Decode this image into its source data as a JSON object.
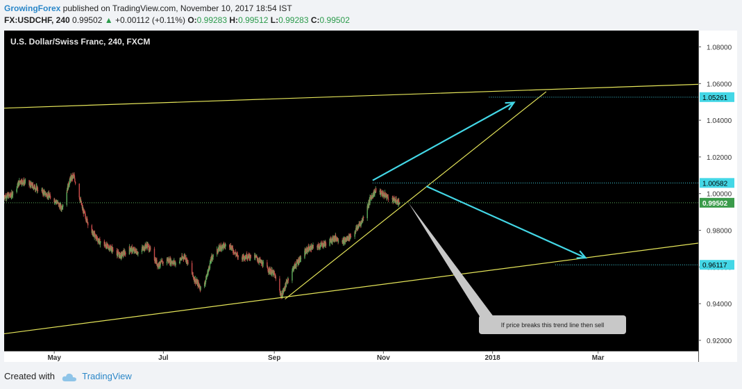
{
  "header": {
    "author": "GrowingForex",
    "published_text": " published on TradingView.com, November 10, 2017 18:54 IST",
    "symbol": "FX:USDCHF, 240",
    "last": "0.99502",
    "change_arrow": "▲",
    "change": "+0.00112 (+0.11%)",
    "o_label": "O:",
    "o_value": "0.99283",
    "h_label": "H:",
    "h_value": "0.99512",
    "l_label": "L:",
    "l_value": "0.99283",
    "c_label": "C:",
    "c_value": "0.99502"
  },
  "footer": {
    "created_with": "Created with",
    "brand": "TradingView"
  },
  "colors": {
    "background": "#000000",
    "up_candle": "#5cae5c",
    "down_candle": "#cd4b4b",
    "trend_line": "#e6e65a",
    "arrow": "#43d7e6",
    "hline": "#43d7e6",
    "price_line": "#5cae5c",
    "callout": "#c8c8c8"
  },
  "chart_data": {
    "type": "candlestick",
    "title": "U.S. Dollar/Swiss Franc, 240, FXCM",
    "x_axis": {
      "ticks": [
        "May",
        "Jul",
        "Sep",
        "Nov",
        "2018",
        "Mar"
      ],
      "tick_dates": [
        "2017-05-01",
        "2017-07-01",
        "2017-09-01",
        "2017-11-01",
        "2018-01-01",
        "2018-03-01"
      ],
      "range": [
        "2017-04-03",
        "2018-04-26"
      ]
    },
    "y_axis": {
      "ticks": [
        "1.08000",
        "1.06000",
        "1.04000",
        "1.02000",
        "1.00000",
        "0.98000",
        "0.96000",
        "0.94000",
        "0.92000"
      ],
      "range": [
        0.9143,
        1.0889
      ]
    },
    "price_path": [
      [
        "2017-04-03",
        0.9985
      ],
      [
        "2017-04-07",
        0.999
      ],
      [
        "2017-04-12",
        1.007
      ],
      [
        "2017-04-17",
        1.005
      ],
      [
        "2017-04-21",
        1.003
      ],
      [
        "2017-04-26",
        1.0
      ],
      [
        "2017-05-02",
        0.996
      ],
      [
        "2017-05-05",
        0.992
      ],
      [
        "2017-05-10",
        1.008
      ],
      [
        "2017-05-12",
        1.0095
      ],
      [
        "2017-05-17",
        0.991
      ],
      [
        "2017-05-22",
        0.979
      ],
      [
        "2017-05-27",
        0.973
      ],
      [
        "2017-06-02",
        0.97
      ],
      [
        "2017-06-07",
        0.966
      ],
      [
        "2017-06-12",
        0.97
      ],
      [
        "2017-06-17",
        0.968
      ],
      [
        "2017-06-22",
        0.972
      ],
      [
        "2017-06-28",
        0.961
      ],
      [
        "2017-07-03",
        0.964
      ],
      [
        "2017-07-08",
        0.962
      ],
      [
        "2017-07-13",
        0.966
      ],
      [
        "2017-07-18",
        0.954
      ],
      [
        "2017-07-23",
        0.947
      ],
      [
        "2017-07-28",
        0.965
      ],
      [
        "2017-08-02",
        0.971
      ],
      [
        "2017-08-07",
        0.972
      ],
      [
        "2017-08-12",
        0.965
      ],
      [
        "2017-08-17",
        0.966
      ],
      [
        "2017-08-22",
        0.965
      ],
      [
        "2017-08-27",
        0.96
      ],
      [
        "2017-09-01",
        0.956
      ],
      [
        "2017-09-05",
        0.944
      ],
      [
        "2017-09-10",
        0.957
      ],
      [
        "2017-09-15",
        0.964
      ],
      [
        "2017-09-20",
        0.97
      ],
      [
        "2017-09-25",
        0.971
      ],
      [
        "2017-09-30",
        0.973
      ],
      [
        "2017-10-05",
        0.976
      ],
      [
        "2017-10-10",
        0.974
      ],
      [
        "2017-10-15",
        0.978
      ],
      [
        "2017-10-20",
        0.985
      ],
      [
        "2017-10-25",
        0.998
      ],
      [
        "2017-10-28",
        1.002
      ],
      [
        "2017-11-02",
        0.999
      ],
      [
        "2017-11-06",
        0.997
      ],
      [
        "2017-11-08",
        0.996
      ],
      [
        "2017-11-10",
        0.99502
      ]
    ],
    "horizontal_levels": [
      {
        "label": "1.05261",
        "value": 1.05261,
        "from": "2017-12-30"
      },
      {
        "label": "1.00582",
        "value": 1.00582,
        "from": "2017-10-26"
      },
      {
        "label": "0.96117",
        "value": 0.96117,
        "from": "2018-02-05"
      },
      {
        "label": "0.99502",
        "value": 0.99502,
        "from": "2017-04-03",
        "kind": "last_price"
      }
    ],
    "trend_lines": [
      {
        "from": [
          "2017-04-03",
          1.0466
        ],
        "to": [
          "2018-04-26",
          1.0596
        ]
      },
      {
        "from": [
          "2017-04-03",
          0.9236
        ],
        "to": [
          "2018-04-26",
          0.973
        ]
      },
      {
        "from": [
          "2017-09-07",
          0.9425
        ],
        "to": [
          "2018-01-31",
          1.0556
        ]
      }
    ],
    "arrows": [
      {
        "from": [
          "2017-10-26",
          1.0072
        ],
        "to": [
          "2018-01-13",
          1.0497
        ]
      },
      {
        "from": [
          "2017-11-25",
          1.004
        ],
        "to": [
          "2018-02-22",
          0.965
        ]
      }
    ],
    "annotation": {
      "text": "If price breaks this trend line then sell",
      "pointer": [
        "2017-11-15",
        0.995
      ]
    }
  }
}
